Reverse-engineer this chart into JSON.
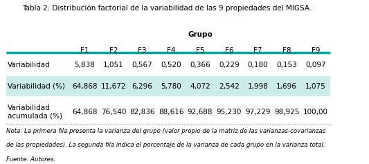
{
  "title": "Tabla 2. Distribución factorial de la variabilidad de las 9 propiedades del MIGSA.",
  "group_header": "Grupo",
  "col_headers": [
    "F1",
    "F2",
    "F3",
    "F4",
    "F5",
    "F6",
    "F7",
    "F8",
    "F9"
  ],
  "row_labels": [
    "Variabilidad",
    "Variabilidad (%)",
    "Variabilidad\nacumulada (%)"
  ],
  "data": [
    [
      "5,838",
      "1,051",
      "0,567",
      "0,520",
      "0,366",
      "0,229",
      "0,180",
      "0,153",
      "0,097"
    ],
    [
      "64,868",
      "11,672",
      "6,296",
      "5,780",
      "4,072",
      "2,542",
      "1,998",
      "1,696",
      "1,075"
    ],
    [
      "64,868",
      "76,540",
      "82,836",
      "88,616",
      "92,688",
      "95,230",
      "97,229",
      "98,925",
      "100,00"
    ]
  ],
  "row_bg_colors": [
    "#ffffff",
    "#ccecea",
    "#ffffff"
  ],
  "header_line_color": "#00a99d",
  "bottom_line_color": "#888888",
  "note_lines": [
    "Nota: La primera fila presenta la varianza del grupo (valor propio de la matriz de las varianzas-covarianzas",
    "de las propiedades). La segunda fila indica el porcentaje de la varianza de cada grupo en la varianza total.",
    "Fuente: Autores."
  ],
  "title_fontsize": 7.5,
  "header_fontsize": 7.5,
  "cell_fontsize": 7.5,
  "note_fontsize": 6.2,
  "bg_color": "#ffffff"
}
